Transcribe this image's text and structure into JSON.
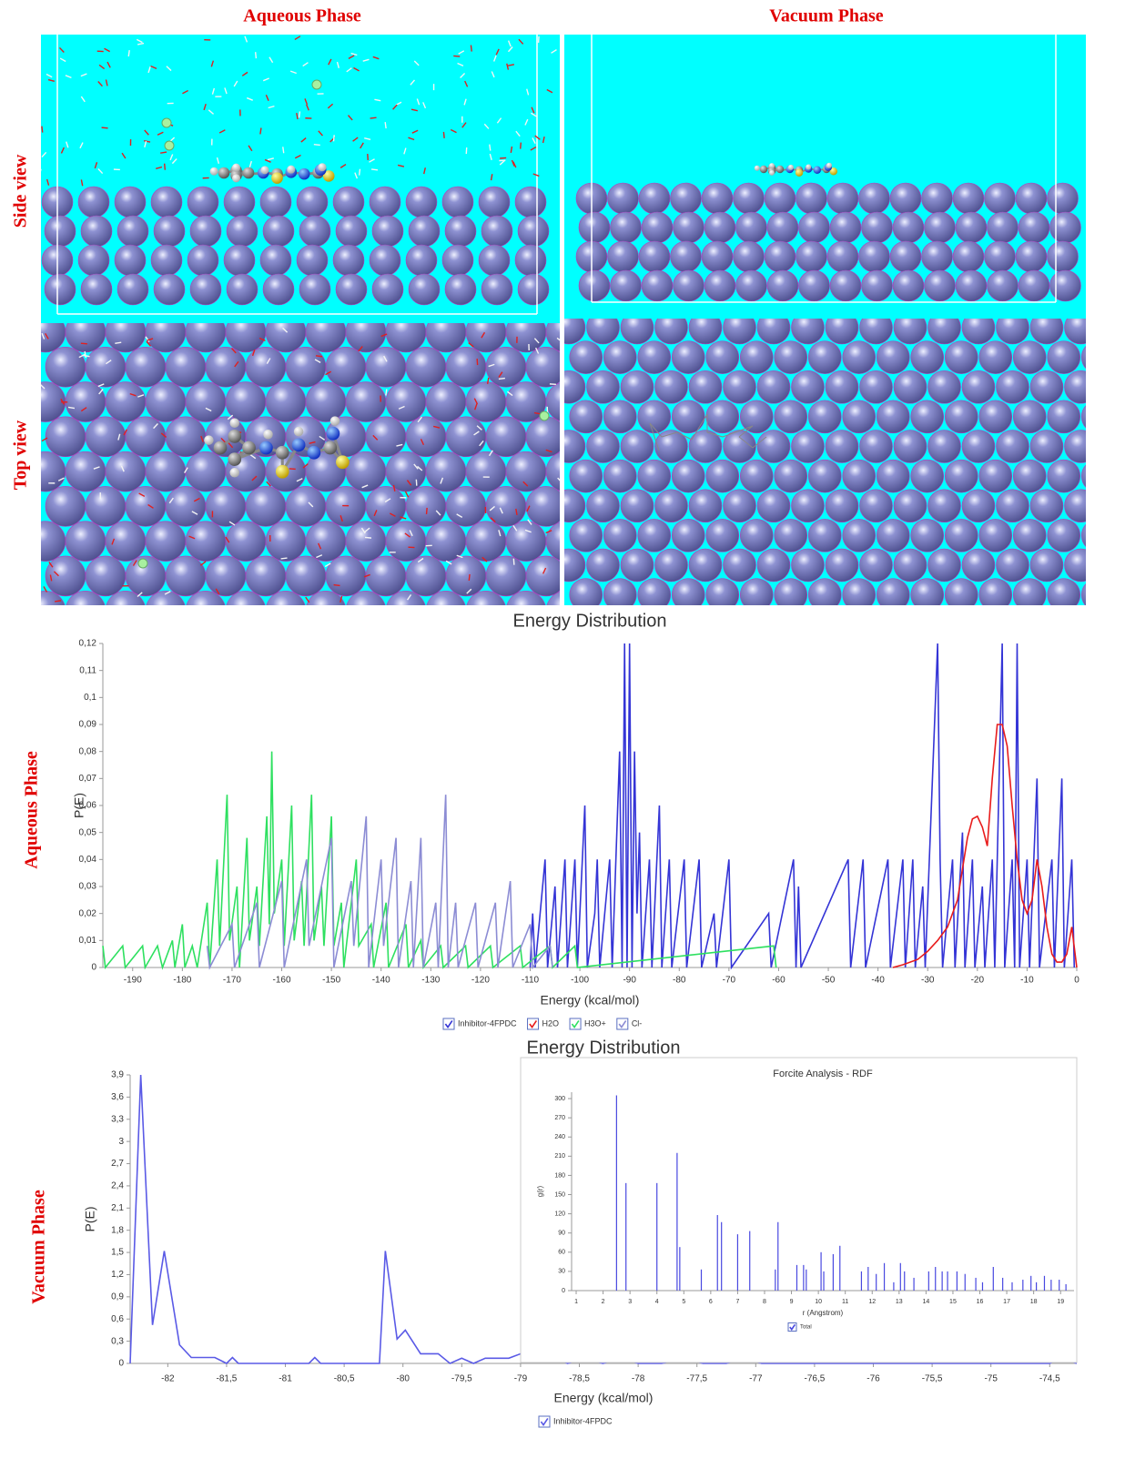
{
  "figure": {
    "column_titles": [
      "Aqueous Phase",
      "Vacuum Phase"
    ],
    "row_labels": [
      "Side view",
      "Top view"
    ],
    "chart_labels": [
      "Aqueous Phase",
      "Vacuum Phase"
    ]
  },
  "chart_data": [
    {
      "type": "line",
      "title": "Energy Distribution",
      "x_label": "Energy (kcal/mol)",
      "y_label": "P(E)",
      "xlim": [
        -196,
        0
      ],
      "ylim": [
        0,
        0.12
      ],
      "xticks": [
        -190,
        -180,
        -170,
        -160,
        -150,
        -140,
        -130,
        -120,
        -110,
        -100,
        -90,
        -80,
        -70,
        -60,
        -50,
        -40,
        -30,
        -20,
        -10,
        0
      ],
      "yticks": [
        0,
        {
          "value": 0.01,
          "label": "0,01"
        },
        {
          "value": 0.02,
          "label": "0,02"
        },
        {
          "value": 0.03,
          "label": "0,03"
        },
        {
          "value": 0.04,
          "label": "0,04"
        },
        {
          "value": 0.05,
          "label": "0,05"
        },
        {
          "value": 0.06,
          "label": "0,06"
        },
        {
          "value": 0.07,
          "label": "0,07"
        },
        {
          "value": 0.08,
          "label": "0,08"
        },
        {
          "value": 0.09,
          "label": "0,09"
        },
        {
          "value": 0.1,
          "label": "0,1"
        },
        {
          "value": 0.11,
          "label": "0,11"
        },
        {
          "value": 0.12,
          "label": "0,12"
        }
      ],
      "series": [
        {
          "name": "Inhibitor-4FPDC",
          "color": "#3434d6",
          "x": [
            -110,
            -109.5,
            -109,
            -107,
            -106.5,
            -105,
            -104.5,
            -103,
            -102.5,
            -101,
            -100.5,
            -99,
            -98.5,
            -97,
            -96.5,
            -96,
            -94,
            -93.5,
            -92,
            -91.5,
            -91,
            -90.5,
            -90,
            -89.5,
            -89,
            -88.5,
            -88,
            -87.5,
            -86,
            -85.5,
            -84,
            -83.5,
            -82,
            -81.5,
            -79,
            -78.5,
            -76,
            -75.5,
            -73,
            -72.5,
            -70,
            -69.5,
            -62,
            -61.5,
            -57,
            -56.5,
            -56,
            -55.5,
            -46,
            -45.5,
            -43,
            -42.5,
            -38,
            -37.5,
            -35,
            -34.5,
            -33,
            -32.5,
            -31,
            -30.5,
            -28,
            -27.5,
            -27,
            -25,
            -24.5,
            -23,
            -22.5,
            -21,
            -20.5,
            -19,
            -18.5,
            -17,
            -16.5,
            -15,
            -14.5,
            -13,
            -12.5,
            -12,
            -11.5,
            -10,
            -9.5,
            -8,
            -7.5,
            -5,
            -4.5,
            -3,
            -2.5,
            -1,
            -0.5
          ],
          "values": [
            0,
            0.02,
            0,
            0.04,
            0,
            0.03,
            0,
            0.04,
            0,
            0.04,
            0,
            0.06,
            0,
            0.02,
            0.04,
            0,
            0.04,
            0,
            0.08,
            0,
            0.12,
            0,
            0.12,
            0,
            0.08,
            0.02,
            0.05,
            0,
            0.04,
            0,
            0.06,
            0,
            0.04,
            0,
            0.04,
            0,
            0.04,
            0,
            0.02,
            0,
            0.04,
            0,
            0.02,
            0,
            0.04,
            0,
            0.03,
            0,
            0.04,
            0,
            0.04,
            0,
            0.04,
            0,
            0.04,
            0,
            0.04,
            0,
            0.03,
            0,
            0.12,
            0.04,
            0,
            0.04,
            0,
            0.05,
            0,
            0.04,
            0,
            0.03,
            0,
            0.04,
            0,
            0.12,
            0,
            0.04,
            0,
            0.12,
            0,
            0.04,
            0,
            0.07,
            0,
            0.04,
            0,
            0.07,
            0,
            0.04,
            0
          ]
        },
        {
          "name": "H2O",
          "color": "#e81c1c",
          "x": [
            -37,
            -35,
            -32,
            -30,
            -28,
            -26,
            -24,
            -22,
            -21,
            -20,
            -19,
            -18,
            -17,
            -16,
            -15,
            -14,
            -13,
            -12,
            -11,
            -10,
            -9,
            -8,
            -7,
            -6,
            -5,
            -4,
            -3,
            -2,
            -1,
            0
          ],
          "values": [
            0,
            0.001,
            0.003,
            0.006,
            0.01,
            0.015,
            0.025,
            0.048,
            0.055,
            0.056,
            0.052,
            0.045,
            0.07,
            0.09,
            0.09,
            0.082,
            0.06,
            0.04,
            0.025,
            0.02,
            0.025,
            0.04,
            0.03,
            0.015,
            0.005,
            0.002,
            0.002,
            0.005,
            0.015,
            0
          ]
        },
        {
          "name": "H3O+",
          "color": "#2ee060",
          "x": [
            -196,
            -195.5,
            -192,
            -191.5,
            -188,
            -187.5,
            -185,
            -184,
            -182,
            -181.5,
            -180,
            -179.5,
            -178,
            -177,
            -175,
            -174.5,
            -173,
            -172.5,
            -171,
            -170.5,
            -169,
            -168.5,
            -167,
            -166.5,
            -165,
            -164.5,
            -163,
            -162.5,
            -162,
            -161.5,
            -160,
            -159.5,
            -158,
            -157.5,
            -156,
            -155.5,
            -154,
            -153.5,
            -152,
            -151.5,
            -150,
            -149.5,
            -148,
            -147.5,
            -145,
            -144.5,
            -142,
            -141.5,
            -139,
            -138.5,
            -135,
            -134.5,
            -132,
            -131.5,
            -128,
            -127.5,
            -123,
            -122.5,
            -118,
            -117.5,
            -112,
            -111.5,
            -106,
            -105.5,
            -101,
            -100.5,
            -61,
            -60.5
          ],
          "values": [
            0.008,
            0,
            0.008,
            0,
            0.008,
            0,
            0.008,
            0,
            0.01,
            0,
            0.016,
            0,
            0.008,
            0,
            0.024,
            0,
            0.04,
            0.008,
            0.064,
            0.01,
            0.03,
            0,
            0.048,
            0.01,
            0.03,
            0.008,
            0.056,
            0.016,
            0.08,
            0.02,
            0.04,
            0.008,
            0.06,
            0.01,
            0.032,
            0.008,
            0.064,
            0.01,
            0.03,
            0.008,
            0.056,
            0.008,
            0.024,
            0,
            0.04,
            0.008,
            0.016,
            0,
            0.024,
            0,
            0.016,
            0,
            0.01,
            0,
            0.008,
            0,
            0.008,
            0,
            0.008,
            0,
            0.008,
            0,
            0.008,
            0,
            0.008,
            0,
            0.008,
            0
          ]
        },
        {
          "name": "Cl-",
          "color": "#8c8cd4",
          "x": [
            -175,
            -174.5,
            -170,
            -169.5,
            -165,
            -164.5,
            -160,
            -159.5,
            -155,
            -154.5,
            -150,
            -149.5,
            -146,
            -145.5,
            -143,
            -142.5,
            -140,
            -139.5,
            -137,
            -136.5,
            -134,
            -133.5,
            -132,
            -131.5,
            -129,
            -128.5,
            -127,
            -126.5,
            -125,
            -124.5,
            -121,
            -120.5,
            -117,
            -116.5,
            -114,
            -113.5,
            -110,
            -109.5,
            -106,
            -105.5
          ],
          "values": [
            0.008,
            0,
            0.016,
            0,
            0.024,
            0,
            0.032,
            0,
            0.04,
            0.008,
            0.048,
            0,
            0.032,
            0.008,
            0.056,
            0,
            0.04,
            0.008,
            0.048,
            0,
            0.032,
            0,
            0.048,
            0,
            0.024,
            0,
            0.064,
            0,
            0.024,
            0,
            0.024,
            0,
            0.024,
            0,
            0.032,
            0,
            0.016,
            0,
            0.008,
            0
          ]
        }
      ]
    },
    {
      "type": "line",
      "title": "Energy Distribution",
      "x_label": "Energy (kcal/mol)",
      "y_label": "P(E)",
      "xlim": [
        -82.32,
        -74.27
      ],
      "ylim": [
        0,
        3.9
      ],
      "xticks": [
        -82,
        {
          "value": -81.5,
          "label": "-81,5"
        },
        -81,
        {
          "value": -80.5,
          "label": "-80,5"
        },
        -80,
        {
          "value": -79.5,
          "label": "-79,5"
        },
        -79,
        {
          "value": -78.5,
          "label": "-78,5"
        },
        -78,
        {
          "value": -77.5,
          "label": "-77,5"
        },
        -77,
        {
          "value": -76.5,
          "label": "-76,5"
        },
        -76,
        {
          "value": -75.5,
          "label": "-75,5"
        },
        -75,
        {
          "value": -74.5,
          "label": "-74,5"
        }
      ],
      "yticks": [
        0,
        {
          "value": 0.3,
          "label": "0,3"
        },
        {
          "value": 0.6,
          "label": "0,6"
        },
        {
          "value": 0.9,
          "label": "0,9"
        },
        {
          "value": 1.2,
          "label": "1,2"
        },
        {
          "value": 1.5,
          "label": "1,5"
        },
        {
          "value": 1.8,
          "label": "1,8"
        },
        {
          "value": 2.1,
          "label": "2,1"
        },
        {
          "value": 2.4,
          "label": "2,4"
        },
        {
          "value": 2.7,
          "label": "2,7"
        },
        3,
        {
          "value": 3.3,
          "label": "3,3"
        },
        {
          "value": 3.6,
          "label": "3,6"
        },
        {
          "value": 3.9,
          "label": "3,9"
        }
      ],
      "series": [
        {
          "name": "Inhibitor-4FPDC",
          "color": "#5a5ae6",
          "x": [
            -82.32,
            -82.23,
            -82.13,
            -82.03,
            -81.9,
            -81.8,
            -81.6,
            -81.5,
            -81.45,
            -81.4,
            -80.8,
            -80.75,
            -80.7,
            -80.2,
            -80.15,
            -80.05,
            -79.98,
            -79.85,
            -79.7,
            -79.6,
            -79.5,
            -79.4,
            -79.3,
            -79.1,
            -79,
            -78.9,
            -78.7,
            -78.6,
            -78.45,
            -78.3,
            -78.15,
            -78,
            -77.8,
            -77.6,
            -77.45,
            -77.25,
            -77.1,
            -76.95,
            -74.5,
            -74.4,
            -74.27
          ],
          "values": [
            0,
            3.9,
            0.52,
            1.52,
            0.25,
            0.08,
            0.08,
            0,
            0.08,
            0,
            0,
            0.08,
            0,
            0,
            1.52,
            0.33,
            0.45,
            0.13,
            0.13,
            0,
            0.07,
            0,
            0.07,
            0.07,
            0.13,
            0.07,
            0.07,
            0,
            0.07,
            0,
            0.07,
            0,
            0,
            0.07,
            0,
            0,
            0.07,
            0,
            0,
            0.07,
            0
          ]
        }
      ]
    },
    {
      "type": "stem",
      "title": "Forcite Analysis - RDF",
      "x_label": "r (Angstrom)",
      "y_label": "g(r)",
      "xlim": [
        0.83,
        19.5
      ],
      "ylim": [
        0,
        310
      ],
      "xticks": [
        1,
        2,
        3,
        4,
        5,
        6,
        7,
        8,
        9,
        10,
        11,
        12,
        13,
        14,
        15,
        16,
        17,
        18,
        19
      ],
      "yticks": [
        0,
        30,
        60,
        90,
        120,
        150,
        180,
        210,
        240,
        270,
        300
      ],
      "series": [
        {
          "name": "Total",
          "color": "#4848e0",
          "x": [
            2.5,
            2.85,
            4,
            4.75,
            4.85,
            5.65,
            6.25,
            6.4,
            7,
            7.45,
            8.4,
            8.5,
            9.2,
            9.45,
            9.55,
            10.1,
            10.2,
            10.55,
            10.8,
            11.6,
            11.85,
            12.15,
            12.45,
            12.8,
            13.05,
            13.2,
            13.55,
            14.1,
            14.35,
            14.6,
            14.8,
            15.15,
            15.45,
            15.85,
            16.1,
            16.5,
            16.85,
            17.2,
            17.6,
            17.9,
            18.1,
            18.4,
            18.65,
            18.95,
            19.2
          ],
          "values": [
            305,
            168,
            168,
            215,
            68,
            33,
            118,
            107,
            88,
            93,
            33,
            107,
            40,
            40,
            33,
            60,
            30,
            57,
            70,
            30,
            37,
            26,
            43,
            13,
            43,
            30,
            20,
            30,
            37,
            30,
            30,
            30,
            26,
            20,
            13,
            37,
            20,
            13,
            17,
            23,
            13,
            23,
            17,
            17,
            10
          ]
        }
      ]
    }
  ]
}
